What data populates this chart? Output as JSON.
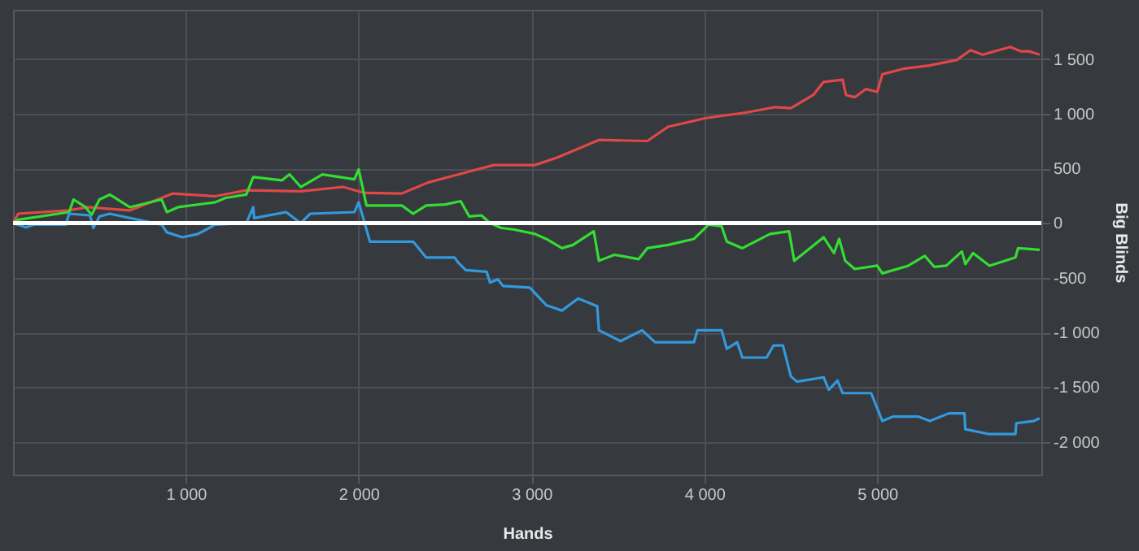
{
  "chart_data": {
    "type": "line",
    "xlabel": "Hands",
    "ylabel": "Big Blinds",
    "xlim": [
      0,
      5950
    ],
    "ylim": [
      -2300,
      1950
    ],
    "xticks": [
      {
        "value": 1000,
        "label": "1 000"
      },
      {
        "value": 2000,
        "label": "2 000"
      },
      {
        "value": 3000,
        "label": "3 000"
      },
      {
        "value": 4000,
        "label": "4 000"
      },
      {
        "value": 5000,
        "label": "5 000"
      }
    ],
    "yticks": [
      {
        "value": -2000,
        "label": "-2 000"
      },
      {
        "value": -1500,
        "label": "-1 500"
      },
      {
        "value": -1000,
        "label": "-1 000"
      },
      -500,
      0,
      500,
      {
        "value": 1000,
        "label": "1 000"
      },
      {
        "value": 1500,
        "label": "1 500"
      }
    ],
    "grid": true,
    "marker": "none",
    "line_style": "solid",
    "ref_lines": [
      {
        "axis": "y",
        "value": 0,
        "color": "#ffffff"
      }
    ],
    "series": [
      {
        "color": "#e04848",
        "x": [
          0,
          30,
          320,
          430,
          675,
          925,
          1170,
          1350,
          1665,
          1910,
          2035,
          2250,
          2400,
          2650,
          2780,
          3020,
          3150,
          3390,
          3670,
          3790,
          4010,
          4240,
          4410,
          4500,
          4630,
          4690,
          4800,
          4820,
          4870,
          4935,
          5000,
          5030,
          5150,
          5300,
          5460,
          5540,
          5610,
          5770,
          5830,
          5880,
          5940
        ],
        "values": [
          0,
          85,
          115,
          145,
          115,
          270,
          245,
          300,
          290,
          330,
          275,
          270,
          370,
          475,
          530,
          530,
          600,
          760,
          750,
          880,
          960,
          1010,
          1060,
          1050,
          1170,
          1290,
          1310,
          1170,
          1150,
          1225,
          1200,
          1360,
          1410,
          1440,
          1490,
          1580,
          1540,
          1610,
          1570,
          1570,
          1540
        ]
      },
      {
        "color": "#33dd33",
        "x": [
          0,
          30,
          325,
          350,
          420,
          455,
          500,
          560,
          675,
          860,
          890,
          955,
          1170,
          1230,
          1350,
          1390,
          1555,
          1600,
          1665,
          1790,
          1975,
          2000,
          2045,
          2250,
          2315,
          2390,
          2500,
          2590,
          2640,
          2710,
          2760,
          2825,
          2900,
          3020,
          3085,
          3176,
          3240,
          3360,
          3390,
          3480,
          3620,
          3670,
          3790,
          3940,
          4025,
          4100,
          4130,
          4220,
          4380,
          4490,
          4520,
          4690,
          4750,
          4780,
          4815,
          4870,
          5000,
          5030,
          5180,
          5275,
          5330,
          5400,
          5490,
          5510,
          5555,
          5650,
          5800,
          5815,
          5940
        ],
        "values": [
          0,
          30,
          100,
          215,
          145,
          75,
          215,
          260,
          145,
          215,
          100,
          145,
          190,
          230,
          260,
          420,
          390,
          445,
          330,
          445,
          400,
          490,
          160,
          160,
          85,
          160,
          170,
          200,
          60,
          70,
          0,
          -45,
          -60,
          -100,
          -145,
          -230,
          -200,
          -75,
          -345,
          -290,
          -330,
          -230,
          -200,
          -145,
          -15,
          -30,
          -170,
          -230,
          -100,
          -75,
          -345,
          -130,
          -275,
          -145,
          -345,
          -420,
          -390,
          -460,
          -390,
          -300,
          -400,
          -390,
          -260,
          -375,
          -275,
          -390,
          -315,
          -230,
          -245
        ]
      },
      {
        "color": "#3399dd",
        "x": [
          0,
          75,
          120,
          305,
          325,
          445,
          465,
          500,
          560,
          860,
          890,
          980,
          1070,
          1170,
          1350,
          1390,
          1395,
          1580,
          1665,
          1720,
          1975,
          2000,
          2065,
          2315,
          2390,
          2555,
          2575,
          2620,
          2740,
          2760,
          2805,
          2835,
          2990,
          3085,
          3176,
          3270,
          3380,
          3390,
          3515,
          3640,
          3715,
          3940,
          3960,
          4100,
          4130,
          4190,
          4220,
          4360,
          4400,
          4455,
          4500,
          4535,
          4690,
          4720,
          4770,
          4800,
          4965,
          5030,
          5090,
          5240,
          5305,
          5415,
          5505,
          5510,
          5650,
          5800,
          5805,
          5905,
          5940
        ],
        "values": [
          0,
          -40,
          -15,
          -15,
          85,
          70,
          -45,
          60,
          85,
          -15,
          -85,
          -130,
          -100,
          -15,
          0,
          145,
          45,
          100,
          0,
          85,
          100,
          190,
          -170,
          -170,
          -315,
          -315,
          -360,
          -430,
          -445,
          -545,
          -515,
          -575,
          -590,
          -750,
          -800,
          -690,
          -760,
          -980,
          -1080,
          -980,
          -1090,
          -1090,
          -980,
          -980,
          -1150,
          -1090,
          -1230,
          -1230,
          -1120,
          -1120,
          -1400,
          -1450,
          -1410,
          -1525,
          -1440,
          -1555,
          -1555,
          -1810,
          -1770,
          -1770,
          -1810,
          -1740,
          -1740,
          -1885,
          -1930,
          -1930,
          -1830,
          -1810,
          -1785
        ]
      }
    ]
  }
}
